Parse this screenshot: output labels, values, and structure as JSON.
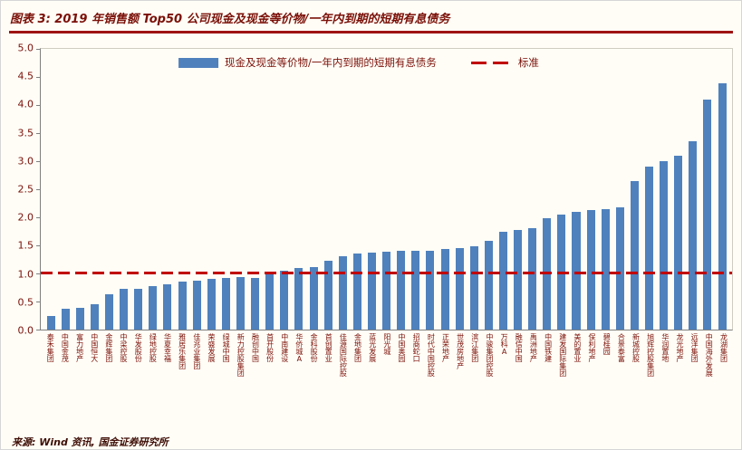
{
  "header": {
    "title": "图表 3: 2019 年销售额 Top50 公司现金及现金等价物/一年内到期的短期有息债务"
  },
  "footer": {
    "source": "来源: Wind 资讯, 国金证券研究所"
  },
  "colors": {
    "bar": "#4f81bd",
    "reference_line": "#c00000",
    "accent": "#9e1312",
    "text": "#7a1008"
  },
  "chart_data": {
    "type": "bar",
    "title": "2019 年销售额 Top50 公司现金及现金等价物/一年内到期的短期有息债务",
    "series_label": "现金及现金等价物/一年内到期的短期有息债务",
    "reference_line": {
      "label": "标准",
      "value": 1.0
    },
    "ylim": [
      0,
      5
    ],
    "ytick_step": 0.5,
    "yticks": [
      "5.0",
      "4.5",
      "4.0",
      "3.5",
      "3.0",
      "2.5",
      "2.0",
      "1.5",
      "1.0",
      "0.5",
      "0.0"
    ],
    "grid": false,
    "legend_position": "top-center",
    "xlabel": "",
    "ylabel": "",
    "categories": [
      "泰禾集团",
      "中国金茂",
      "富力地产",
      "中国恒大",
      "金辉集团",
      "中梁控股",
      "华发股份",
      "绿地控股",
      "华夏幸福",
      "雅居乐集团",
      "佳兆业集团",
      "荣盛发展",
      "绿城中国",
      "新力控股集团",
      "融创中国",
      "首开股份",
      "中南建设",
      "华侨城A",
      "金科股份",
      "首创置业",
      "佳源国际控股",
      "金地集团",
      "蓝光发展",
      "阳光城",
      "中国奥园",
      "招商蛇口",
      "时代中国控股",
      "正荣地产",
      "世茂房地产",
      "滨江集团",
      "中骏集团控股",
      "万科A",
      "融信中国",
      "禹洲地产",
      "中国铁建",
      "建发国际集团",
      "美的置业",
      "保利地产",
      "碧桂园",
      "合景泰富",
      "新城控股",
      "旭辉控股集团",
      "华润置地",
      "龙光地产",
      "远洋集团",
      "中国海外发展",
      "龙湖集团"
    ],
    "values": [
      0.25,
      0.37,
      0.38,
      0.45,
      0.63,
      0.72,
      0.73,
      0.78,
      0.8,
      0.85,
      0.87,
      0.9,
      0.92,
      0.93,
      0.92,
      1.02,
      1.05,
      1.1,
      1.12,
      1.22,
      1.3,
      1.35,
      1.37,
      1.38,
      1.4,
      1.4,
      1.41,
      1.43,
      1.45,
      1.48,
      1.58,
      1.75,
      1.78,
      1.8,
      1.98,
      2.05,
      2.1,
      2.13,
      2.15,
      2.17,
      2.65,
      2.9,
      3.0,
      3.1,
      3.35,
      4.1,
      4.38
    ]
  }
}
